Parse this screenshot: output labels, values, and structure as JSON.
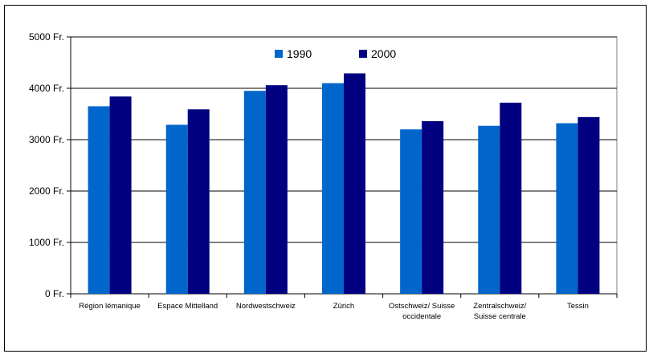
{
  "chart_data": {
    "type": "bar",
    "categories": [
      [
        "Région lémanique"
      ],
      [
        "Espace Mittelland"
      ],
      [
        "Nordwestschweiz"
      ],
      [
        "Zürich"
      ],
      [
        "Ostschweiz/ Suisse",
        "occidentale"
      ],
      [
        "Zentralschweiz/",
        "Suisse centrale"
      ],
      [
        "Tessin"
      ]
    ],
    "series": [
      {
        "name": "1990",
        "color": "#0066cc",
        "values": [
          3650,
          3290,
          3950,
          4100,
          3200,
          3270,
          3320
        ]
      },
      {
        "name": "2000",
        "color": "#000080",
        "values": [
          3840,
          3590,
          4060,
          4290,
          3360,
          3720,
          3440
        ]
      }
    ],
    "yticks": [
      "0 Fr.",
      "1000 Fr.",
      "2000 Fr.",
      "3000 Fr.",
      "4000 Fr.",
      "5000 Fr."
    ],
    "ylim": [
      0,
      5000
    ],
    "grid": true,
    "legend_position": "top-center",
    "title": "",
    "xlabel": "",
    "ylabel": ""
  }
}
